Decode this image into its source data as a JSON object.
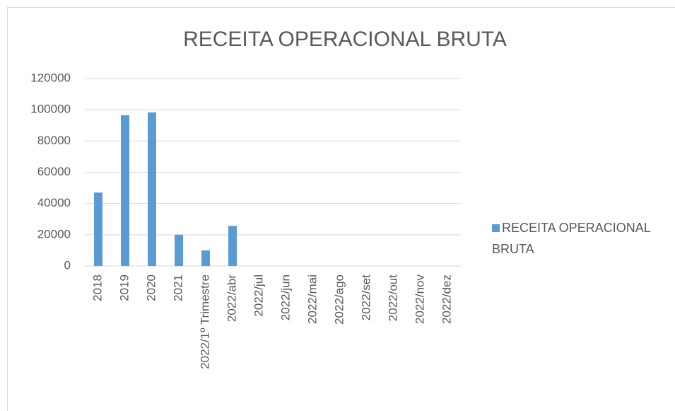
{
  "chart_data": {
    "type": "bar",
    "title": "RECEITA OPERACIONAL BRUTA",
    "categories": [
      "2018",
      "2019",
      "2020",
      "2021",
      "2022/1º Trimestre",
      "2022/abr",
      "2022/jul",
      "2022/jun",
      "2022/mai",
      "2022/ago",
      "2022/set",
      "2022/out",
      "2022/nov",
      "2022/dez"
    ],
    "series": [
      {
        "name": "RECEITA OPERACIONAL BRUTA",
        "color": "#5b9bd5",
        "values": [
          47000,
          96500,
          98300,
          20000,
          10000,
          25700,
          0,
          0,
          0,
          0,
          0,
          0,
          0,
          0
        ]
      }
    ],
    "ylim": [
      0,
      120000
    ],
    "yticks": [
      0,
      20000,
      40000,
      60000,
      80000,
      100000,
      120000
    ],
    "grid": true,
    "legend": "right"
  }
}
